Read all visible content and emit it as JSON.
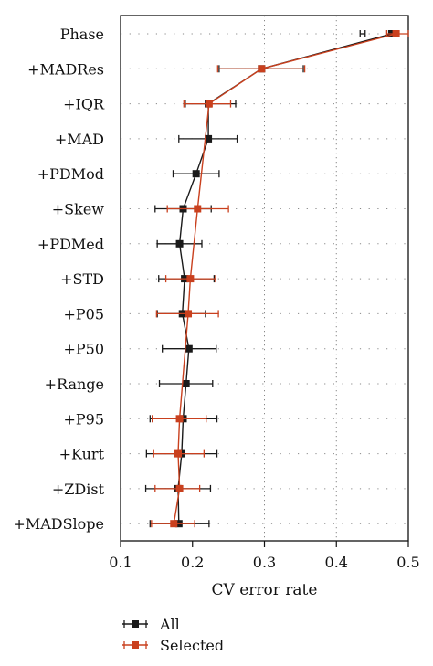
{
  "chart_data": {
    "type": "scatter",
    "orientation": "horizontal",
    "xlabel": "CV error rate",
    "xlim": [
      0.1,
      0.5
    ],
    "xticks": [
      0.1,
      0.2,
      0.3,
      0.4,
      0.5
    ],
    "xtick_labels": [
      "0.1",
      "0.2",
      "0.3",
      "0.4",
      "0.5"
    ],
    "vertical_gridlines_at": [
      0.3,
      0.4
    ],
    "horizontal_dotted_guides": true,
    "legend_position": "bottom-left, below plot",
    "categories": [
      "Phase",
      "+MADRes",
      "+IQR",
      "+MAD",
      "+PDMod",
      "+Skew",
      "+PDMed",
      "+STD",
      "+P05",
      "+P50",
      "+Range",
      "+P95",
      "+Kurt",
      "+ZDist",
      "+MADSlope"
    ],
    "series": [
      {
        "name": "All",
        "color": "#1a1a1a",
        "values": [
          0.477,
          0.296,
          0.222,
          0.222,
          0.205,
          0.187,
          0.182,
          0.189,
          0.186,
          0.195,
          0.191,
          0.187,
          0.185,
          0.18,
          0.181
        ],
        "err_low": [
          0.433,
          0.237,
          0.19,
          0.181,
          0.173,
          0.148,
          0.151,
          0.153,
          0.151,
          0.158,
          0.154,
          0.141,
          0.136,
          0.135,
          0.141
        ],
        "err_high": [
          0.44,
          0.354,
          0.26,
          0.262,
          0.237,
          0.226,
          0.213,
          0.23,
          0.218,
          0.233,
          0.228,
          0.234,
          0.234,
          0.225,
          0.223
        ]
      },
      {
        "name": "Selected",
        "color": "#c9401e",
        "values": [
          0.483,
          0.296,
          0.223,
          null,
          null,
          0.207,
          null,
          0.197,
          0.194,
          null,
          null,
          0.182,
          0.18,
          0.182,
          0.174
        ],
        "err_low": [
          0.47,
          0.235,
          0.188,
          null,
          null,
          0.165,
          null,
          0.163,
          0.15,
          null,
          null,
          0.144,
          0.146,
          0.148,
          0.143
        ],
        "err_high": [
          0.5,
          0.356,
          0.253,
          null,
          null,
          0.25,
          null,
          0.232,
          0.236,
          null,
          null,
          0.219,
          0.216,
          0.21,
          0.203
        ]
      }
    ]
  }
}
